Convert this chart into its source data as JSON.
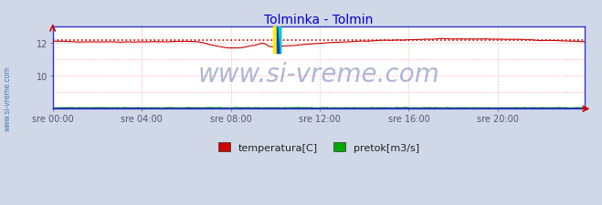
{
  "title": "Tolminka - Tolmin",
  "title_color": "#0000cc",
  "title_fontsize": 10,
  "bg_color": "#d0d8e8",
  "plot_bg_color": "#ffffff",
  "grid_color": "#ffb0b0",
  "xlim": [
    0,
    287
  ],
  "ylim": [
    8.0,
    13.0
  ],
  "yticks": [
    10,
    12
  ],
  "xtick_labels": [
    "sre 00:00",
    "sre 04:00",
    "sre 08:00",
    "sre 12:00",
    "sre 16:00",
    "sre 20:00"
  ],
  "xtick_positions": [
    0,
    48,
    96,
    144,
    192,
    240
  ],
  "tick_fontsize": 7,
  "tick_color": "#555577",
  "watermark_text": "www.si-vreme.com",
  "watermark_color": "#7788bb",
  "watermark_fontsize": 20,
  "sidebar_text": "www.si-vreme.com",
  "sidebar_color": "#3366aa",
  "temp_color": "#cc0000",
  "flow_color": "#00aa00",
  "height_color": "#0000cc",
  "dotted_ref_color": "#cc0000",
  "dotted_ref_value": 12.18,
  "frame_color": "#3333cc",
  "arrow_color": "#cc0000",
  "legend_items": [
    {
      "label": "temperatura[C]",
      "color": "#cc0000"
    },
    {
      "label": "pretok[m3/s]",
      "color": "#00aa00"
    }
  ],
  "legend_fontsize": 8
}
